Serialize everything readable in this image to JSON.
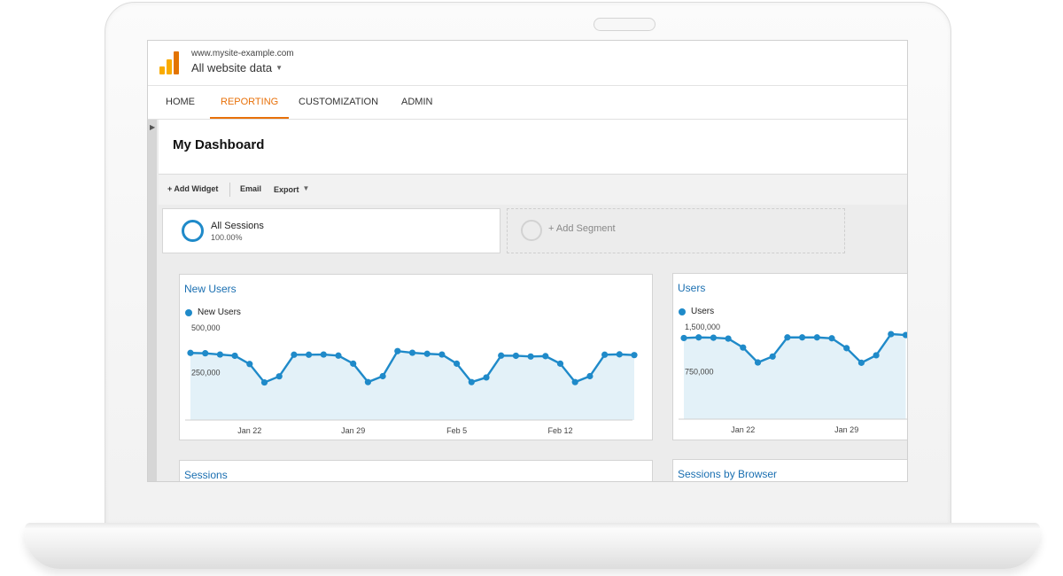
{
  "site": {
    "url": "www.mysite-example.com",
    "view": "All website data"
  },
  "nav": {
    "tabs": [
      {
        "label": "HOME",
        "active": false
      },
      {
        "label": "REPORTING",
        "active": true
      },
      {
        "label": "CUSTOMIZATION",
        "active": false
      },
      {
        "label": "ADMIN",
        "active": false
      }
    ]
  },
  "dashboard": {
    "title": "My Dashboard",
    "actions": {
      "add_widget": "+ Add Widget",
      "email": "Email",
      "export": "Export"
    }
  },
  "segments": {
    "active": {
      "name": "All Sessions",
      "percent": "100.00%"
    },
    "add_label": "+ Add Segment"
  },
  "colors": {
    "accent": "#e8710a",
    "series": "#1f8ac9",
    "area_fill": "#e3f1f8",
    "title_link": "#1a6fb1"
  },
  "widgets": {
    "new_users": {
      "title": "New Users"
    },
    "users": {
      "title": "Users"
    },
    "sessions": {
      "title": "Sessions"
    },
    "sessions_by_browser": {
      "title": "Sessions by Browser"
    }
  },
  "chart_data": [
    {
      "type": "area",
      "title": "New Users",
      "series": [
        {
          "name": "New Users",
          "values": [
            375000,
            373000,
            366000,
            359000,
            313000,
            210000,
            244000,
            365000,
            365000,
            366000,
            360000,
            315000,
            212000,
            245000,
            385000,
            376000,
            370000,
            366000,
            315000,
            212000,
            238000,
            360000,
            359000,
            355000,
            357000,
            315000,
            212000,
            245000,
            365000,
            367000,
            363000
          ]
        }
      ],
      "ylim": [
        0,
        500000
      ],
      "y_ticks": [
        "500,000",
        "250,000"
      ],
      "x_ticks": [
        {
          "label": "Jan 22",
          "index": 4
        },
        {
          "label": "Jan 29",
          "index": 11
        },
        {
          "label": "Feb 5",
          "index": 18
        },
        {
          "label": "Feb 12",
          "index": 25
        }
      ],
      "grid": false,
      "legend": "top-left"
    },
    {
      "type": "area",
      "title": "Users",
      "series": [
        {
          "name": "Users",
          "values": [
            1360000,
            1370000,
            1365000,
            1350000,
            1200000,
            950000,
            1050000,
            1370000,
            1370000,
            1370000,
            1355000,
            1190000,
            945000,
            1070000,
            1425000,
            1410000
          ]
        }
      ],
      "ylim": [
        0,
        1500000
      ],
      "y_ticks": [
        "1,500,000",
        "750,000"
      ],
      "x_ticks": [
        {
          "label": "Jan 22",
          "index": 4
        },
        {
          "label": "Jan 29",
          "index": 11
        }
      ],
      "grid": false,
      "legend": "top-left"
    }
  ]
}
